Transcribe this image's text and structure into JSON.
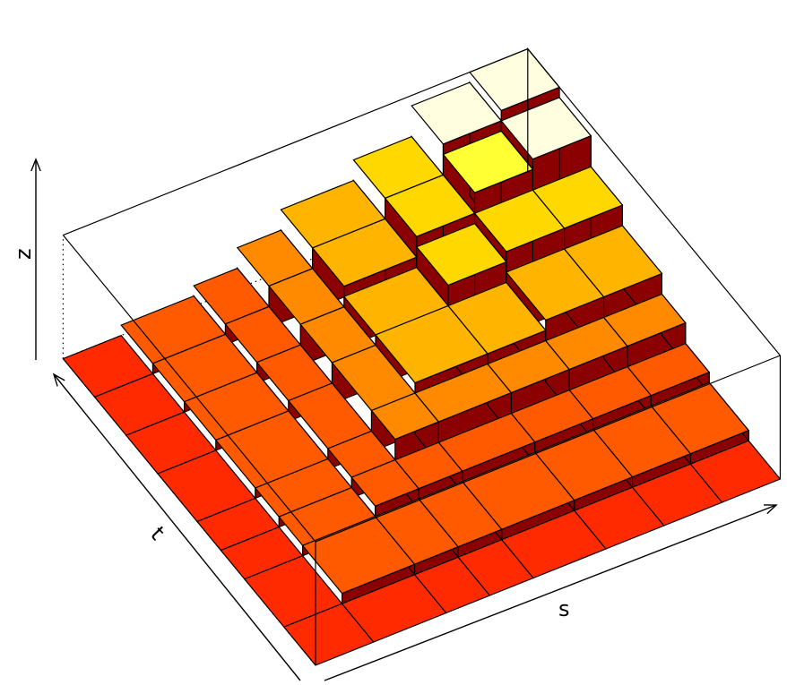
{
  "chart_data": {
    "type": "bar3d",
    "xlabel": "s",
    "ylabel": "t",
    "zlabel": "z",
    "colors": {
      "scale": [
        "#ff2a00",
        "#ff5a00",
        "#ff8a00",
        "#ffb400",
        "#ffd800",
        "#ffff33",
        "#ffffe0"
      ],
      "side": "#8b0000",
      "edge": "#000000"
    },
    "box_grid": true,
    "levels": [
      0,
      1,
      2,
      3,
      4,
      5,
      6,
      7,
      8,
      9,
      10,
      11,
      12
    ],
    "s_blocks": [
      {
        "s0": 0,
        "s1": 4
      },
      {
        "s0": 4,
        "s1": 9
      },
      {
        "s0": 9,
        "s1": 12
      },
      {
        "s0": 12,
        "s1": 15
      },
      {
        "s0": 15,
        "s1": 20
      },
      {
        "s0": 20,
        "s1": 24
      },
      {
        "s0": 24,
        "s1": 28
      },
      {
        "s0": 28,
        "s1": 32
      }
    ],
    "t_blocks": [
      {
        "t0": 0,
        "t1": 4
      },
      {
        "t0": 4,
        "t1": 9
      },
      {
        "t0": 9,
        "t1": 12
      },
      {
        "t0": 12,
        "t1": 15
      },
      {
        "t0": 15,
        "t1": 20
      },
      {
        "t0": 20,
        "t1": 24
      },
      {
        "t0": 24,
        "t1": 28
      },
      {
        "t0": 28,
        "t1": 32
      }
    ],
    "heights": [
      [
        0,
        0,
        0,
        0,
        0,
        0,
        0,
        0
      ],
      [
        0,
        1,
        1,
        1,
        1,
        1,
        1,
        1
      ],
      [
        0,
        1,
        2,
        2,
        2,
        2,
        2,
        2
      ],
      [
        0,
        1,
        2,
        4,
        4,
        4,
        4,
        4
      ],
      [
        0,
        1,
        2,
        4,
        5,
        5,
        6,
        6
      ],
      [
        0,
        1,
        2,
        4,
        5,
        7,
        8,
        8
      ],
      [
        0,
        1,
        2,
        4,
        6,
        8,
        10,
        11
      ],
      [
        0,
        1,
        2,
        4,
        6,
        8,
        11,
        12
      ]
    ]
  }
}
